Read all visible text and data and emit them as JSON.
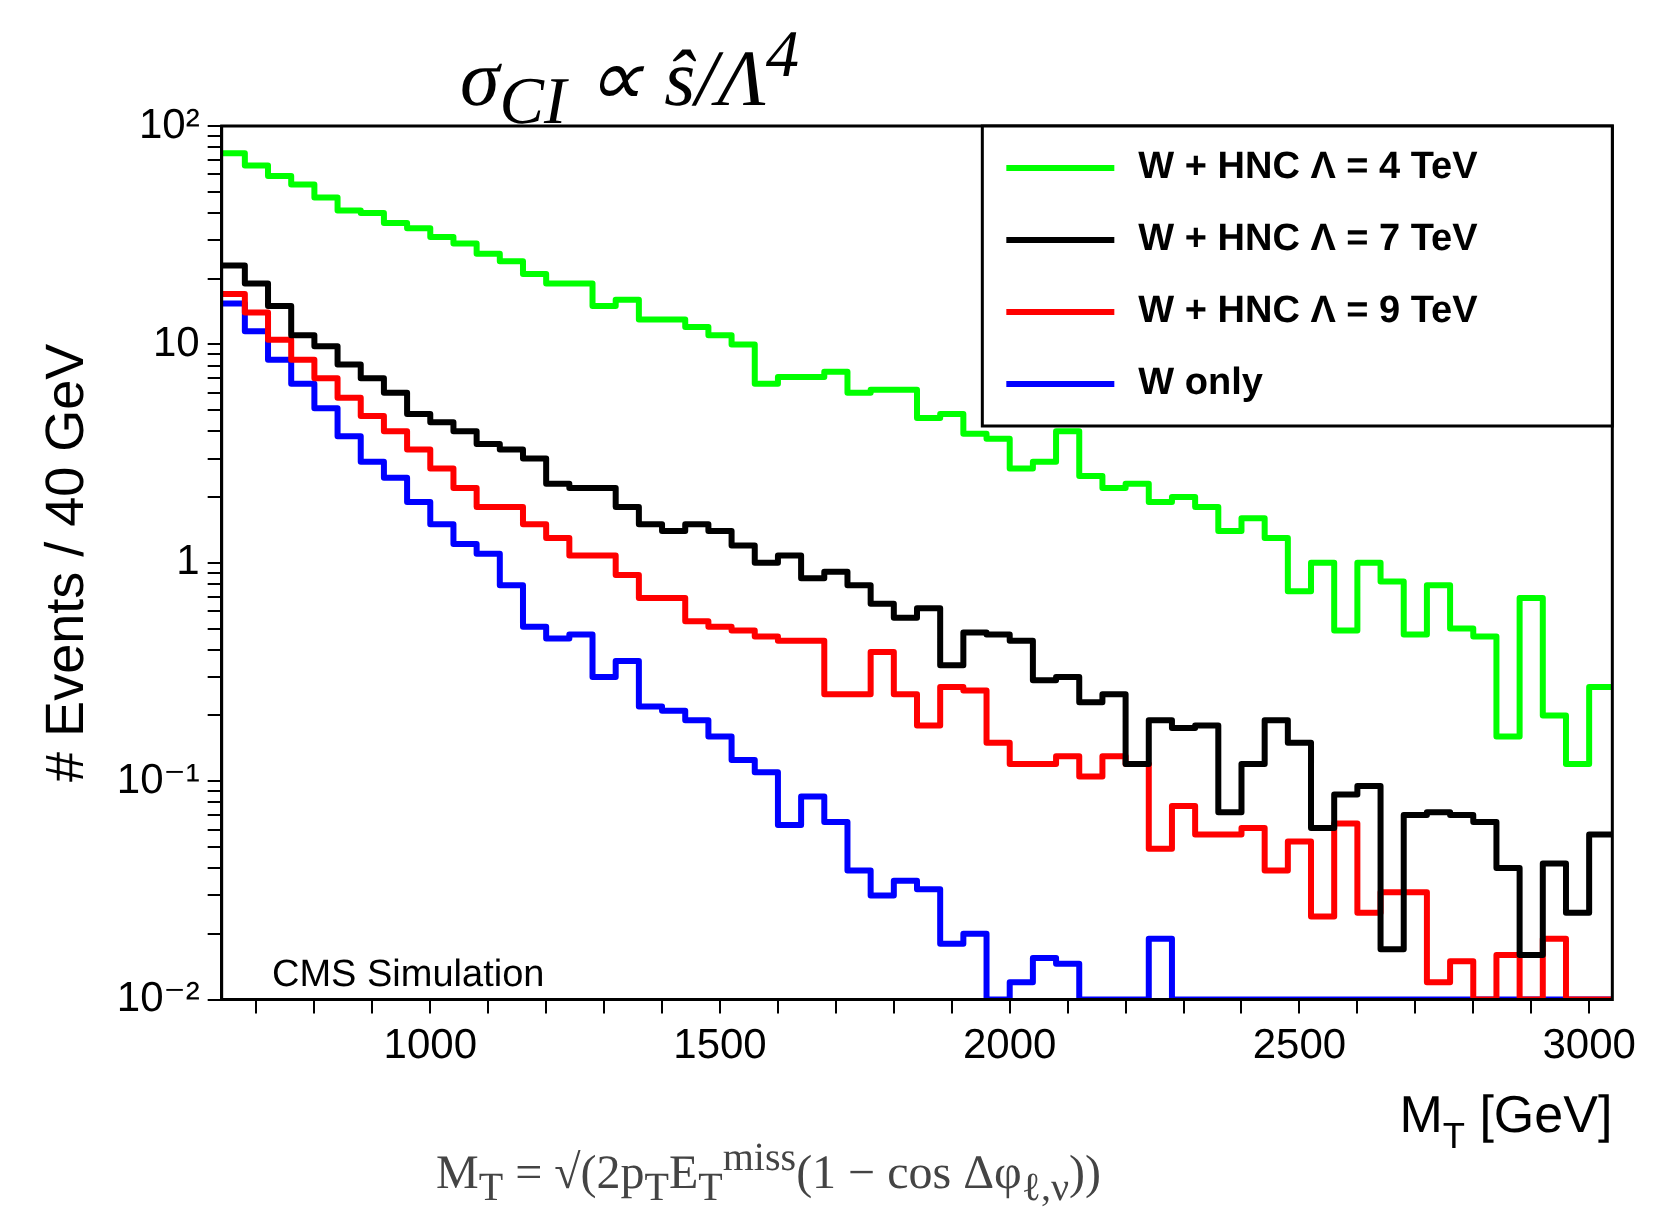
{
  "chart_data": {
    "type": "histogram",
    "xlabel": "M$_{T}$ [GeV]",
    "ylabel": "# Events / 40 GeV",
    "annotations": [
      "σ$_{CI}$ ∝ ŝ/Λ$^{4}$",
      "CMS Simulation",
      "M$_{T}$ = √(2p$_{T}$E$_{T}$$^{miss}$(1 − cos Δφ$_{ℓ,ν}$))"
    ],
    "bins": [
      640,
      680,
      720,
      760,
      800,
      840,
      880,
      920,
      960,
      1000,
      1040,
      1080,
      1120,
      1160,
      1200,
      1240,
      1280,
      1320,
      1360,
      1400,
      1440,
      1480,
      1520,
      1560,
      1600,
      1640,
      1680,
      1720,
      1760,
      1800,
      1840,
      1880,
      1920,
      1960,
      2000,
      2040,
      2080,
      2120,
      2160,
      2200,
      2240,
      2280,
      2320,
      2360,
      2400,
      2440,
      2480,
      2520,
      2560,
      2600,
      2640,
      2680,
      2720,
      2760,
      2800,
      2840,
      2880,
      2920,
      2960,
      3000,
      3040
    ],
    "series": [
      {
        "name": "W + HNC Λ = 4 TeV",
        "color": "#00ff00",
        "values": [
          75,
          66,
          59,
          54,
          47,
          41,
          40,
          36,
          34,
          31,
          29,
          26,
          24,
          21,
          19,
          19,
          15,
          16,
          13,
          13,
          12,
          11,
          10,
          6.6,
          7.1,
          7.1,
          7.5,
          6.0,
          6.2,
          6.2,
          4.6,
          4.8,
          3.9,
          3.7,
          2.7,
          2.9,
          4.0,
          2.5,
          2.2,
          2.3,
          1.9,
          2.0,
          1.8,
          1.4,
          1.6,
          1.3,
          0.74,
          1.0,
          0.49,
          1.0,
          0.82,
          0.47,
          0.79,
          0.5,
          0.46,
          0.16,
          0.69,
          0.2,
          0.12,
          0.27
        ]
      },
      {
        "name": "W + HNC Λ = 7 TeV",
        "color": "#000000",
        "values": [
          23,
          19,
          15,
          11,
          9.8,
          8.1,
          7.0,
          6.0,
          4.8,
          4.4,
          4.0,
          3.5,
          3.3,
          3.0,
          2.3,
          2.2,
          2.2,
          1.8,
          1.5,
          1.4,
          1.5,
          1.4,
          1.2,
          1.0,
          1.08,
          0.85,
          0.91,
          0.79,
          0.65,
          0.56,
          0.62,
          0.34,
          0.48,
          0.47,
          0.44,
          0.29,
          0.3,
          0.23,
          0.25,
          0.12,
          0.19,
          0.175,
          0.18,
          0.072,
          0.12,
          0.19,
          0.15,
          0.061,
          0.087,
          0.095,
          0.017,
          0.07,
          0.072,
          0.07,
          0.065,
          0.04,
          0.016,
          0.042,
          0.025,
          0.057
        ]
      },
      {
        "name": "W + HNC Λ = 9 TeV",
        "color": "#ff0000",
        "values": [
          17,
          14,
          10.5,
          8.5,
          7.0,
          5.7,
          4.7,
          4.0,
          3.3,
          2.7,
          2.2,
          1.8,
          1.8,
          1.5,
          1.3,
          1.08,
          1.08,
          0.88,
          0.69,
          0.69,
          0.54,
          0.51,
          0.49,
          0.46,
          0.44,
          0.44,
          0.25,
          0.25,
          0.39,
          0.25,
          0.18,
          0.27,
          0.26,
          0.15,
          0.12,
          0.12,
          0.13,
          0.105,
          0.13,
          0.12,
          0.049,
          0.077,
          0.057,
          0.057,
          0.061,
          0.039,
          0.053,
          0.024,
          0.064,
          0.025,
          0.031,
          0.031,
          0.012,
          0.015,
          null,
          0.016,
          null,
          0.019,
          null,
          null
        ]
      },
      {
        "name": "W only",
        "color": "#0000ff",
        "values": [
          15.4,
          11.5,
          8.5,
          6.6,
          5.1,
          3.8,
          2.9,
          2.45,
          1.9,
          1.5,
          1.22,
          1.1,
          0.79,
          0.51,
          0.45,
          0.47,
          0.3,
          0.355,
          0.22,
          0.21,
          0.19,
          0.16,
          0.125,
          0.11,
          0.063,
          0.085,
          0.065,
          0.039,
          0.03,
          0.035,
          0.032,
          0.018,
          0.02,
          null,
          0.012,
          0.0155,
          0.0146,
          null,
          null,
          null,
          0.019,
          null,
          null,
          null,
          null,
          null,
          null,
          null,
          null,
          null,
          null,
          null,
          null,
          null,
          null,
          null,
          null,
          null,
          null,
          null
        ]
      }
    ],
    "xlim": [
      640,
      3040
    ],
    "ylim": [
      0.01,
      100
    ],
    "log": "y",
    "grid": false,
    "legend": "top right",
    "xticks": [
      {
        "value": 700,
        "label": null
      },
      {
        "value": 800,
        "label": null
      },
      {
        "value": 900,
        "label": null
      },
      1000,
      {
        "value": 1100,
        "label": null
      },
      {
        "value": 1200,
        "label": null
      },
      {
        "value": 1300,
        "label": null
      },
      {
        "value": 1400,
        "label": null
      },
      1500,
      {
        "value": 1600,
        "label": null
      },
      {
        "value": 1700,
        "label": null
      },
      {
        "value": 1800,
        "label": null
      },
      {
        "value": 1900,
        "label": null
      },
      2000,
      {
        "value": 2100,
        "label": null
      },
      {
        "value": 2200,
        "label": null
      },
      {
        "value": 2300,
        "label": null
      },
      {
        "value": 2400,
        "label": null
      },
      2500,
      {
        "value": 2600,
        "label": null
      },
      {
        "value": 2700,
        "label": null
      },
      {
        "value": 2800,
        "label": null
      },
      {
        "value": 2900,
        "label": null
      },
      3000
    ],
    "yticks": [
      {
        "value": 0.01,
        "label": "10⁻²"
      },
      {
        "value": 0.02,
        "label": null
      },
      {
        "value": 0.03,
        "label": null
      },
      {
        "value": 0.04,
        "label": null
      },
      {
        "value": 0.05,
        "label": null
      },
      {
        "value": 0.06,
        "label": null
      },
      {
        "value": 0.07,
        "label": null
      },
      {
        "value": 0.08,
        "label": null
      },
      {
        "value": 0.09,
        "label": null
      },
      {
        "value": 0.1,
        "label": "10⁻¹"
      },
      {
        "value": 0.2,
        "label": null
      },
      {
        "value": 0.3,
        "label": null
      },
      {
        "value": 0.4,
        "label": null
      },
      {
        "value": 0.5,
        "label": null
      },
      {
        "value": 0.6,
        "label": null
      },
      {
        "value": 0.7,
        "label": null
      },
      {
        "value": 0.8,
        "label": null
      },
      {
        "value": 0.9,
        "label": null
      },
      1,
      {
        "value": 2,
        "label": null
      },
      {
        "value": 3,
        "label": null
      },
      {
        "value": 4,
        "label": null
      },
      {
        "value": 5,
        "label": null
      },
      {
        "value": 6,
        "label": null
      },
      {
        "value": 7,
        "label": null
      },
      {
        "value": 8,
        "label": null
      },
      {
        "value": 9,
        "label": null
      },
      10,
      {
        "value": 20,
        "label": null
      },
      {
        "value": 30,
        "label": null
      },
      {
        "value": 40,
        "label": null
      },
      {
        "value": 50,
        "label": null
      },
      {
        "value": 60,
        "label": null
      },
      {
        "value": 70,
        "label": null
      },
      {
        "value": 80,
        "label": null
      },
      {
        "value": 90,
        "label": null
      },
      {
        "value": 100,
        "label": "10²"
      }
    ]
  }
}
